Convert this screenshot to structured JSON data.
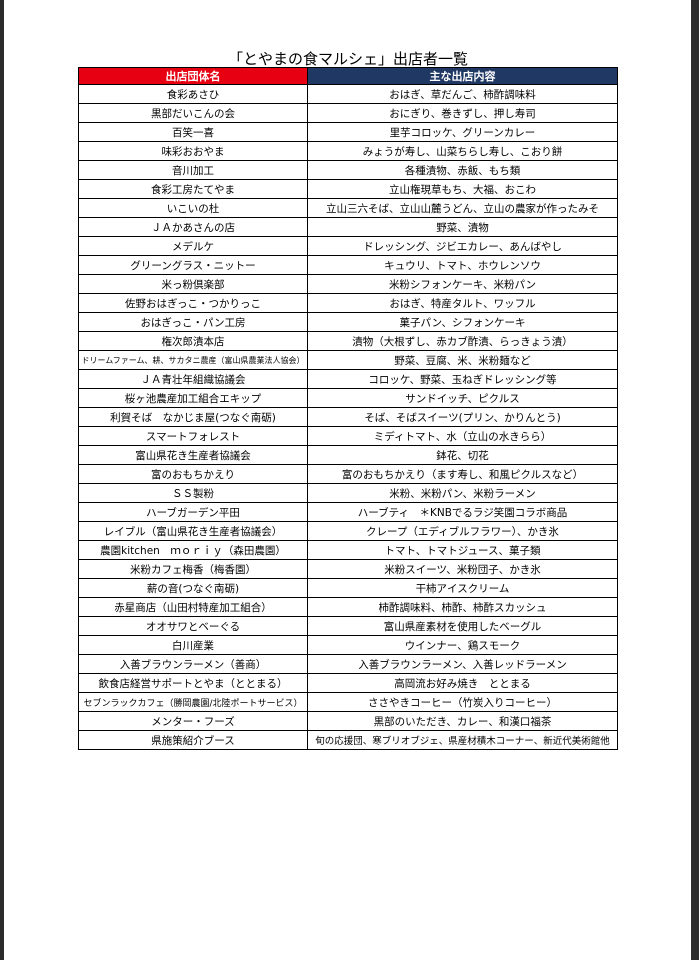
{
  "title": "「とやまの食マルシェ」出店者一覧",
  "table": {
    "header": [
      "出店団体名",
      "主な出店内容"
    ],
    "rows": [
      [
        "食彩あさひ",
        "おはぎ、草だんご、柿酢調味料"
      ],
      [
        "黒部だいこんの会",
        "おにぎり、巻きずし、押し寿司"
      ],
      [
        "百笑一喜",
        "里芋コロッケ、グリーンカレー"
      ],
      [
        "味彩おおやま",
        "みょうが寿し、山菜ちらし寿し、こおり餅"
      ],
      [
        "音川加工",
        "各種漬物、赤飯、もち類"
      ],
      [
        "食彩工房たてやま",
        "立山権現草もち、大福、おこわ"
      ],
      [
        "いこいの杜",
        "立山三六そば、立山山麓うどん、立山の農家が作ったみそ"
      ],
      [
        "ＪＡかあさんの店",
        "野菜、漬物"
      ],
      [
        "メデルケ",
        "ドレッシング、ジビエカレー、あんばやし"
      ],
      [
        "グリーングラス・ニットー",
        "キュウリ、トマト、ホウレンソウ"
      ],
      [
        "米っ粉倶楽部",
        "米粉シフォンケーキ、米粉パン"
      ],
      [
        "佐野おはぎっこ・つかりっこ",
        "おはぎ、特産タルト、ワッフル"
      ],
      [
        "おはぎっこ・パン工房",
        "菓子パン、シフォンケーキ"
      ],
      [
        "権次郎漬本店",
        "漬物（大根ずし、赤カブ酢漬、らっきょう漬）"
      ],
      [
        "ドリームファーム、耕、サカタニ農産（富山県農業法人協会）",
        "野菜、豆腐、米、米粉麺など"
      ],
      [
        "ＪＡ青壮年組織協議会",
        "コロッケ、野菜、玉ねぎドレッシング等"
      ],
      [
        "桜ヶ池農産加工組合エキップ",
        "サンドイッチ、ピクルス"
      ],
      [
        "利賀そば　なかじま屋(つなぐ南砺)",
        "そば、そばスイーツ(プリン、かりんとう)"
      ],
      [
        "スマートフォレスト",
        "ミディトマト、水（立山の水きらら）"
      ],
      [
        "富山県花き生産者協議会",
        "鉢花、切花"
      ],
      [
        "富のおもちかえり",
        "富のおもちかえり（ます寿し、和風ピクルスなど）"
      ],
      [
        "ＳＳ製粉",
        "米粉、米粉パン、米粉ラーメン"
      ],
      [
        "ハーブガーデン平田",
        "ハーブティ　＊KNBでるラジ笑園コラボ商品"
      ],
      [
        "レイブル（富山県花き生産者協議会）",
        "クレープ（エディブルフラワー）、かき氷"
      ],
      [
        "農園kitchen　ｍｏｒｉｙ（森田農園）",
        "トマト、トマトジュース、菓子類"
      ],
      [
        "米粉カフェ梅香（梅香園）",
        "米粉スイーツ、米粉団子、かき氷"
      ],
      [
        "薪の音(つなぐ南砺)",
        "干柿アイスクリーム"
      ],
      [
        "赤星商店（山田村特産加工組合）",
        "柿酢調味料、柿酢、柿酢スカッシュ"
      ],
      [
        "オオサワとベーぐる",
        "富山県産素材を使用したベーグル"
      ],
      [
        "白川産業",
        "ウインナー、鶏スモーク"
      ],
      [
        "入善ブラウンラーメン（善商）",
        "入善ブラウンラーメン、入善レッドラーメン"
      ],
      [
        "飲食店経営サポートとやま（ととまる）",
        "高岡流お好み焼き　ととまる"
      ],
      [
        "セブンラックカフェ（勝岡農園/北陸ポートサービス）",
        "ささやきコーヒー（竹炭入りコーヒー）"
      ],
      [
        "メンター・フーズ",
        "黒部のいただき、カレー、和漢口福茶"
      ],
      [
        "県施策紹介ブース",
        "旬の応援団、寒ブリオブジェ、県産材積木コーナー、新近代美術館他"
      ]
    ]
  }
}
